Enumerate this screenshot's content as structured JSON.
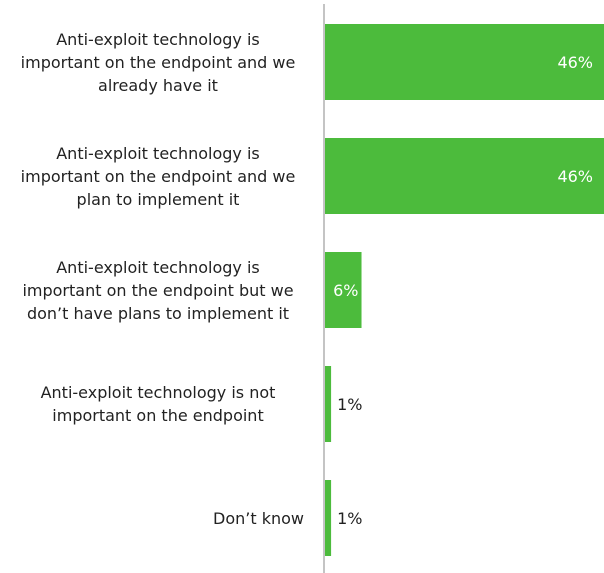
{
  "chart_data": {
    "type": "bar",
    "orientation": "horizontal",
    "categories": [
      [
        "Anti-exploit technology is",
        "important on the endpoint and we",
        "already have it"
      ],
      [
        "Anti-exploit technology is",
        "important on the endpoint and we",
        "plan to implement it"
      ],
      [
        "Anti-exploit technology is",
        "important on the endpoint but we",
        "don’t have plans to implement it"
      ],
      [
        "Anti-exploit technology is not",
        "important on the endpoint"
      ],
      [
        "Don’t know"
      ]
    ],
    "values": [
      46,
      46,
      6,
      1,
      1
    ],
    "data_labels": [
      "46%",
      "46%",
      "6%",
      "1%",
      "1%"
    ],
    "xlim": [
      0,
      46
    ],
    "title": "",
    "xlabel": "",
    "ylabel": "",
    "grid": false,
    "colors": {
      "bar": "#4cbb3c",
      "axis": "#888888",
      "label_inside": "#ffffff",
      "label_outside": "#222222"
    }
  }
}
